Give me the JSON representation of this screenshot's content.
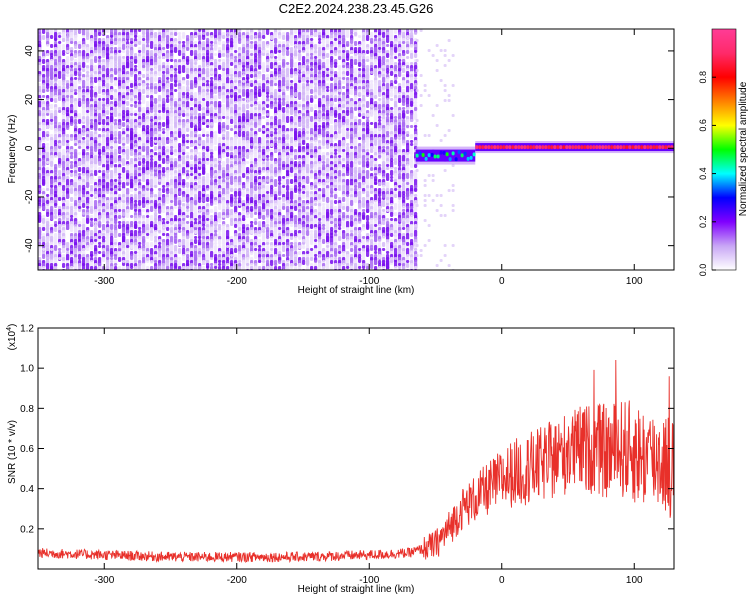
{
  "title": "C2E2.2024.238.23.45.G26",
  "colors": {
    "spectrogram_noise": "#7a10ee",
    "snr_line": "#e8302a",
    "background": "#ffffff",
    "axis": "#000000"
  },
  "chart_data": [
    {
      "type": "heatmap",
      "xlabel": "Height of straight line (km)",
      "ylabel": "Frequency (Hz)",
      "xlim": [
        -350,
        130
      ],
      "ylim": [
        -50,
        49
      ],
      "xticks": [
        -300,
        -200,
        -100,
        0,
        100
      ],
      "yticks": [
        -40,
        -20,
        0,
        20,
        40
      ],
      "grid": false,
      "regions": [
        {
          "x_from": -350,
          "x_to": -65,
          "description_value": "broadband noise, normalized amplitude ~0.05-0.25"
        },
        {
          "x_from": -65,
          "x_to": -20,
          "center_freq_hz": -3,
          "peak_amplitude": 0.5
        },
        {
          "x_from": -20,
          "x_to": 130,
          "center_freq_hz": 0.5,
          "peak_amplitude": 0.95
        }
      ],
      "colorbar": {
        "label": "Normalized spectral amplitude",
        "range": [
          0.0,
          1.0
        ],
        "ticks": [
          "0.0",
          "0.2",
          "0.4",
          "0.6",
          "0.8"
        ],
        "tick_values": [
          0.0,
          0.2,
          0.4,
          0.6,
          0.8
        ],
        "scale": [
          "#ffffff",
          "#c8a6f5",
          "#8000ff",
          "#0000ff",
          "#00ffff",
          "#00ff00",
          "#ffff00",
          "#ff8000",
          "#ff0000",
          "#ff2a6a",
          "#ff3c96"
        ]
      }
    },
    {
      "type": "line",
      "xlabel": "Height of straight line (km)",
      "ylabel": "SNR (10 * v/v)",
      "y_exponent_label": "(x10",
      "y_exponent": "4",
      "y_exponent_close": ")",
      "xlim": [
        -350,
        130
      ],
      "ylim": [
        0.0,
        1.2
      ],
      "xticks": [
        -300,
        -200,
        -100,
        0,
        100
      ],
      "yticks": [
        0.2,
        0.4,
        0.6,
        0.8,
        1.0,
        1.2
      ],
      "ytick_labels": [
        "0.2",
        "0.4",
        "0.6",
        "0.8",
        "1.0",
        "1.2"
      ],
      "grid": false,
      "series": [
        {
          "x": [
            -350,
            -300,
            -250,
            -200,
            -150,
            -100,
            -70,
            -50,
            -40,
            -30,
            -20,
            -10,
            0,
            10,
            20,
            30,
            40,
            50,
            60,
            70,
            80,
            90,
            100,
            110,
            120,
            130
          ],
          "values": [
            0.08,
            0.07,
            0.06,
            0.06,
            0.06,
            0.07,
            0.08,
            0.12,
            0.2,
            0.3,
            0.35,
            0.4,
            0.45,
            0.48,
            0.5,
            0.52,
            0.55,
            0.58,
            0.6,
            0.6,
            0.58,
            0.6,
            0.58,
            0.55,
            0.55,
            0.5
          ]
        }
      ]
    }
  ]
}
